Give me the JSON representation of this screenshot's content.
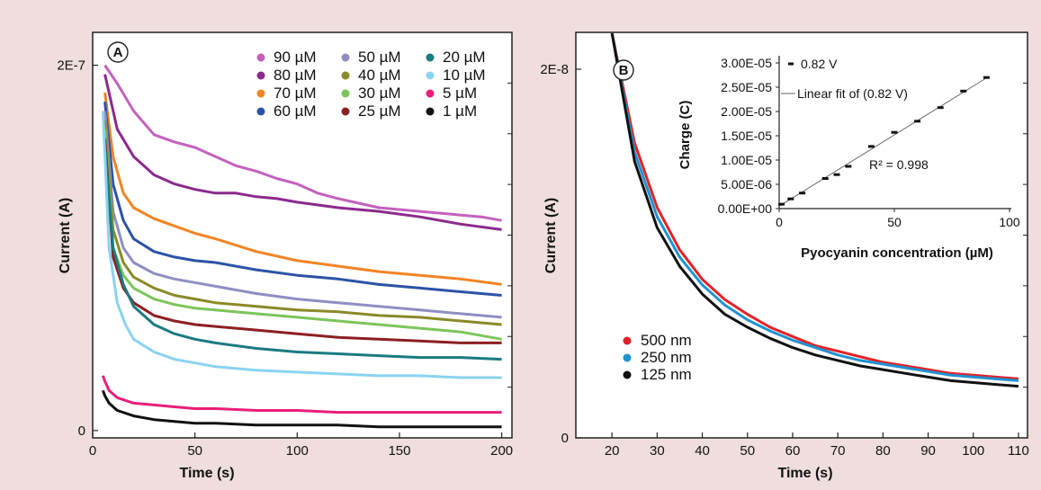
{
  "chart_data": [
    {
      "panel_label": "A",
      "type": "line",
      "xlabel": "Time (s)",
      "ylabel": "Current (A)",
      "xlim": [
        0,
        205
      ],
      "xticks": [
        0,
        50,
        100,
        150,
        200
      ],
      "xtick_labels": [
        "0",
        "50",
        "100",
        "150",
        "200"
      ],
      "ylim": [
        -4e-09,
        2.18e-07
      ],
      "yticks": [
        0,
        2e-07
      ],
      "ytick_labels": [
        "0",
        "2E-7"
      ],
      "legend_position": "top-right",
      "series": [
        {
          "name": "90 µM",
          "color": "#c461be",
          "x": [
            6,
            12,
            20,
            30,
            40,
            50,
            60,
            70,
            80,
            90,
            100,
            110,
            120,
            140,
            160,
            180,
            190,
            200
          ],
          "y": [
            2e-07,
            1.9e-07,
            1.75e-07,
            1.62e-07,
            1.58e-07,
            1.55e-07,
            1.5e-07,
            1.45e-07,
            1.42e-07,
            1.38e-07,
            1.35e-07,
            1.3e-07,
            1.27e-07,
            1.22e-07,
            1.2e-07,
            1.18e-07,
            1.17e-07,
            1.15e-07
          ]
        },
        {
          "name": "80 µM",
          "color": "#8b2a8c",
          "x": [
            6,
            12,
            20,
            30,
            40,
            50,
            60,
            70,
            80,
            90,
            100,
            120,
            140,
            160,
            180,
            200
          ],
          "y": [
            1.95e-07,
            1.65e-07,
            1.5e-07,
            1.4e-07,
            1.35e-07,
            1.32e-07,
            1.3e-07,
            1.3e-07,
            1.28e-07,
            1.27e-07,
            1.25e-07,
            1.22e-07,
            1.2e-07,
            1.17e-07,
            1.13e-07,
            1.1e-07
          ]
        },
        {
          "name": "70 µM",
          "color": "#f28424",
          "x": [
            6,
            10,
            15,
            20,
            30,
            40,
            50,
            60,
            80,
            100,
            120,
            140,
            160,
            180,
            200
          ],
          "y": [
            1.85e-07,
            1.5e-07,
            1.3e-07,
            1.22e-07,
            1.16e-07,
            1.12e-07,
            1.08e-07,
            1.05e-07,
            9.8e-08,
            9.3e-08,
            9e-08,
            8.7e-08,
            8.5e-08,
            8.3e-08,
            8e-08
          ]
        },
        {
          "name": "60 µM",
          "color": "#2c52a6",
          "x": [
            6,
            10,
            15,
            20,
            30,
            40,
            50,
            60,
            80,
            100,
            120,
            140,
            160,
            180,
            200
          ],
          "y": [
            1.8e-07,
            1.35e-07,
            1.15e-07,
            1.05e-07,
            9.8e-08,
            9.5e-08,
            9.3e-08,
            9.2e-08,
            8.8e-08,
            8.5e-08,
            8.3e-08,
            8e-08,
            7.8e-08,
            7.6e-08,
            7.4e-08
          ]
        },
        {
          "name": "50 µM",
          "color": "#8f8ec2",
          "x": [
            6,
            10,
            15,
            20,
            30,
            40,
            50,
            60,
            80,
            100,
            120,
            140,
            160,
            180,
            200
          ],
          "y": [
            1.75e-07,
            1.2e-07,
            1e-07,
            9.2e-08,
            8.6e-08,
            8.3e-08,
            8.1e-08,
            7.9e-08,
            7.5e-08,
            7.2e-08,
            7e-08,
            6.8e-08,
            6.6e-08,
            6.4e-08,
            6.2e-08
          ]
        },
        {
          "name": "40 µM",
          "color": "#8a8a28",
          "x": [
            6,
            10,
            15,
            20,
            30,
            40,
            50,
            60,
            80,
            100,
            120,
            140,
            160,
            180,
            200
          ],
          "y": [
            1.7e-07,
            1.1e-07,
            9.2e-08,
            8.4e-08,
            7.8e-08,
            7.4e-08,
            7.2e-08,
            7e-08,
            6.8e-08,
            6.6e-08,
            6.5e-08,
            6.3e-08,
            6.2e-08,
            6e-08,
            5.8e-08
          ]
        },
        {
          "name": "30 µM",
          "color": "#7cc55a",
          "x": [
            6,
            10,
            15,
            20,
            30,
            40,
            50,
            60,
            80,
            100,
            120,
            140,
            160,
            180,
            200
          ],
          "y": [
            1.65e-07,
            1e-07,
            8.5e-08,
            7.8e-08,
            7.2e-08,
            6.9e-08,
            6.7e-08,
            6.6e-08,
            6.4e-08,
            6.2e-08,
            6e-08,
            5.8e-08,
            5.6e-08,
            5.4e-08,
            5e-08
          ]
        },
        {
          "name": "25 µM",
          "color": "#8c1f22",
          "x": [
            6,
            10,
            15,
            20,
            30,
            40,
            50,
            60,
            80,
            100,
            120,
            140,
            160,
            180,
            200
          ],
          "y": [
            1.6e-07,
            9.5e-08,
            7.8e-08,
            7e-08,
            6.3e-08,
            6e-08,
            5.8e-08,
            5.7e-08,
            5.5e-08,
            5.3e-08,
            5.1e-08,
            5e-08,
            4.9e-08,
            4.8e-08,
            4.8e-08
          ]
        },
        {
          "name": "20 µM",
          "color": "#1a7b80",
          "x": [
            6,
            10,
            15,
            20,
            30,
            40,
            50,
            60,
            80,
            100,
            120,
            140,
            160,
            180,
            200
          ],
          "y": [
            1.55e-07,
            1e-07,
            8e-08,
            6.8e-08,
            5.8e-08,
            5.3e-08,
            5e-08,
            4.8e-08,
            4.5e-08,
            4.3e-08,
            4.2e-08,
            4.1e-08,
            4e-08,
            4e-08,
            3.9e-08
          ]
        },
        {
          "name": "10 µM",
          "color": "#8ad3ef",
          "x": [
            5,
            8,
            12,
            16,
            20,
            30,
            40,
            50,
            60,
            80,
            100,
            120,
            140,
            160,
            180,
            200
          ],
          "y": [
            1.75e-07,
            1e-07,
            7e-08,
            5.8e-08,
            5e-08,
            4.3e-08,
            3.9e-08,
            3.7e-08,
            3.5e-08,
            3.3e-08,
            3.2e-08,
            3.1e-08,
            3e-08,
            3e-08,
            2.9e-08,
            2.9e-08
          ]
        },
        {
          "name": "5 µM",
          "color": "#e81f78",
          "x": [
            5,
            6,
            8,
            12,
            20,
            30,
            40,
            50,
            60,
            80,
            100,
            120,
            140,
            160,
            180,
            200
          ],
          "y": [
            3e-08,
            2.7e-08,
            2.2e-08,
            1.8e-08,
            1.5e-08,
            1.4e-08,
            1.3e-08,
            1.2e-08,
            1.2e-08,
            1.1e-08,
            1.1e-08,
            1e-08,
            1e-08,
            1e-08,
            1e-08,
            1e-08
          ]
        },
        {
          "name": "1 µM",
          "color": "#111111",
          "x": [
            5,
            6,
            8,
            12,
            20,
            30,
            40,
            50,
            60,
            80,
            100,
            120,
            140,
            160,
            180,
            200
          ],
          "y": [
            2.2e-08,
            1.9e-08,
            1.5e-08,
            1.1e-08,
            8e-09,
            6e-09,
            5e-09,
            4e-09,
            4e-09,
            3e-09,
            3e-09,
            3e-09,
            2e-09,
            2e-09,
            2e-09,
            2e-09
          ]
        }
      ],
      "legend_columns": [
        [
          "90 µM",
          "80 µM",
          "70 µM",
          "60 µM"
        ],
        [
          "50 µM",
          "40 µM",
          "30 µM",
          "25 µM"
        ],
        [
          "20 µM",
          "10 µM",
          "5 µM",
          "1 µM"
        ]
      ]
    },
    {
      "panel_label": "B",
      "type": "line",
      "xlabel": "Time (s)",
      "ylabel": "Current (A)",
      "xlim": [
        12,
        112
      ],
      "xticks": [
        20,
        30,
        40,
        50,
        60,
        70,
        80,
        90,
        100,
        110
      ],
      "xtick_labels": [
        "20",
        "30",
        "40",
        "50",
        "60",
        "70",
        "80",
        "90",
        "100",
        "110"
      ],
      "ylim": [
        0,
        2.2e-08
      ],
      "yticks": [
        0,
        2e-08
      ],
      "ytick_labels": [
        "0",
        "2E-8"
      ],
      "legend_position": "bottom-left",
      "series": [
        {
          "name": "500 nm",
          "color": "#e32227",
          "x": [
            20,
            25,
            30,
            35,
            40,
            45,
            50,
            55,
            60,
            65,
            70,
            75,
            80,
            85,
            90,
            95,
            100,
            105,
            110
          ],
          "y": [
            2.2e-08,
            1.6e-08,
            1.25e-08,
            1.02e-08,
            8.6e-09,
            7.5e-09,
            6.7e-09,
            6e-09,
            5.5e-09,
            5e-09,
            4.7e-09,
            4.4e-09,
            4.1e-09,
            3.9e-09,
            3.7e-09,
            3.5e-09,
            3.4e-09,
            3.3e-09,
            3.2e-09
          ]
        },
        {
          "name": "250 nm",
          "color": "#1f92d1",
          "x": [
            20,
            25,
            30,
            35,
            40,
            45,
            50,
            55,
            60,
            65,
            70,
            75,
            80,
            85,
            90,
            95,
            100,
            105,
            110
          ],
          "y": [
            2.2e-08,
            1.55e-08,
            1.2e-08,
            9.8e-09,
            8.3e-09,
            7.2e-09,
            6.4e-09,
            5.8e-09,
            5.3e-09,
            4.9e-09,
            4.5e-09,
            4.2e-09,
            4e-09,
            3.8e-09,
            3.6e-09,
            3.4e-09,
            3.3e-09,
            3.2e-09,
            3.1e-09
          ]
        },
        {
          "name": "125 nm",
          "color": "#111111",
          "x": [
            20,
            25,
            30,
            35,
            40,
            45,
            50,
            55,
            60,
            65,
            70,
            75,
            80,
            85,
            90,
            95,
            100,
            105,
            110
          ],
          "y": [
            2.2e-08,
            1.5e-08,
            1.14e-08,
            9.3e-09,
            7.8e-09,
            6.7e-09,
            6e-09,
            5.4e-09,
            4.9e-09,
            4.5e-09,
            4.2e-09,
            3.9e-09,
            3.7e-09,
            3.5e-09,
            3.3e-09,
            3.1e-09,
            3e-09,
            2.9e-09,
            2.8e-09
          ]
        }
      ],
      "inset": {
        "type": "scatter",
        "xlabel": "Pyocyanin concentration (µM)",
        "ylabel": "Charge (C)",
        "xlim": [
          0,
          100
        ],
        "xtick_labels": [
          "0",
          "50",
          "100"
        ],
        "ylim": [
          0,
          3e-05
        ],
        "ytick_labels": [
          "0.00E+00",
          "5.00E-06",
          "1.00E-05",
          "1.50E-05",
          "2.00E-05",
          "2.50E-05",
          "3.00E-05"
        ],
        "points_series_name": "0.82 V",
        "fit_name": "Linear fit of (0.82 V)",
        "r2_label": "R² = 0.998",
        "x": [
          1,
          5,
          10,
          20,
          25,
          30,
          40,
          50,
          60,
          70,
          80,
          90
        ],
        "y": [
          9e-07,
          2e-06,
          3.2e-06,
          6.2e-06,
          7e-06,
          8.7e-06,
          1.28e-05,
          1.57e-05,
          1.8e-05,
          2.08e-05,
          2.42e-05,
          2.7e-05
        ],
        "fit": {
          "x": [
            0,
            91
          ],
          "y": [
            5e-07,
            2.72e-05
          ]
        }
      }
    }
  ]
}
